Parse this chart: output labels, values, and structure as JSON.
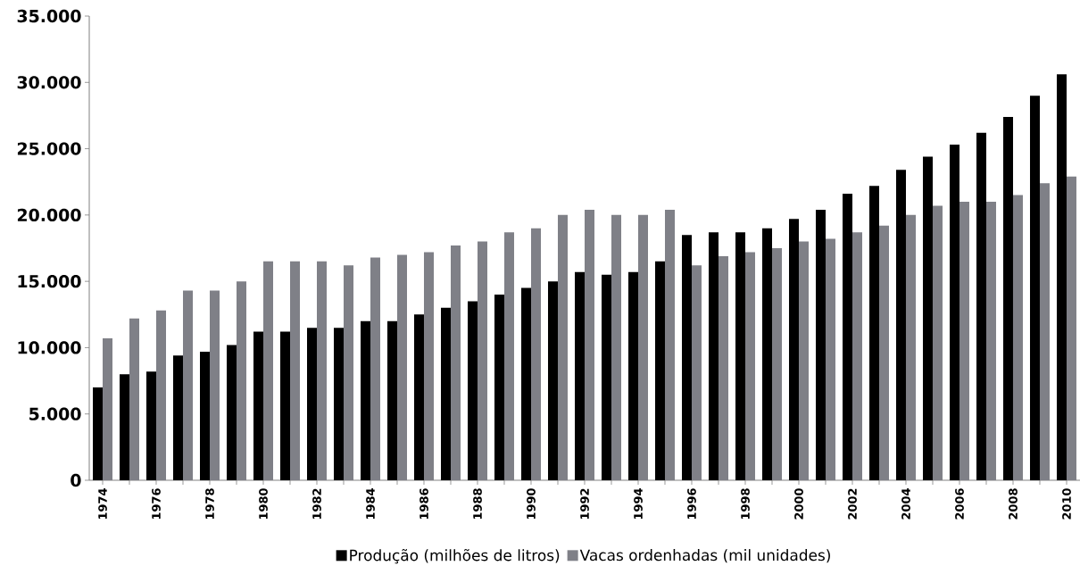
{
  "chart_data": {
    "type": "bar",
    "categories": [
      "1974",
      null,
      "1976",
      null,
      "1978",
      null,
      "1980",
      null,
      "1982",
      null,
      "1984",
      null,
      "1986",
      null,
      "1988",
      null,
      "1990",
      null,
      "1992",
      null,
      "1994",
      null,
      "1996",
      null,
      "1998",
      null,
      "2000",
      null,
      "2002",
      null,
      "2004",
      null,
      "2006",
      null,
      "2008",
      null,
      "2010"
    ],
    "series": [
      {
        "name": "Produção (milhões de litros)",
        "color": "#000000",
        "values": [
          7000,
          8000,
          8200,
          9400,
          9700,
          10200,
          11200,
          11200,
          11500,
          11500,
          12000,
          12000,
          12500,
          13000,
          13500,
          14000,
          14500,
          15000,
          15700,
          15500,
          15700,
          16500,
          18500,
          18700,
          18700,
          19000,
          19700,
          20400,
          21600,
          22200,
          23400,
          24400,
          25300,
          26200,
          27400,
          29000,
          30600
        ]
      },
      {
        "name": "Vacas ordenhadas (mil unidades)",
        "color": "#7f8087",
        "values": [
          10700,
          12200,
          12800,
          14300,
          14300,
          15000,
          16500,
          16500,
          16500,
          16200,
          16800,
          17000,
          17200,
          17700,
          18000,
          18700,
          19000,
          20000,
          20400,
          20000,
          20000,
          20400,
          16200,
          16900,
          17200,
          17500,
          18000,
          18200,
          18700,
          19200,
          20000,
          20700,
          21000,
          21000,
          21500,
          22400,
          22900
        ]
      }
    ],
    "ylim": [
      0,
      35000
    ],
    "yticks": [
      {
        "value": 0,
        "label": "0"
      },
      {
        "value": 5000,
        "label": "5.000"
      },
      {
        "value": 10000,
        "label": "10.000"
      },
      {
        "value": 15000,
        "label": "15.000"
      },
      {
        "value": 20000,
        "label": "20.000"
      },
      {
        "value": 25000,
        "label": "25.000"
      },
      {
        "value": 30000,
        "label": "30.000"
      },
      {
        "value": 35000,
        "label": "35.000"
      }
    ],
    "grid": false,
    "legend": "bottom"
  }
}
